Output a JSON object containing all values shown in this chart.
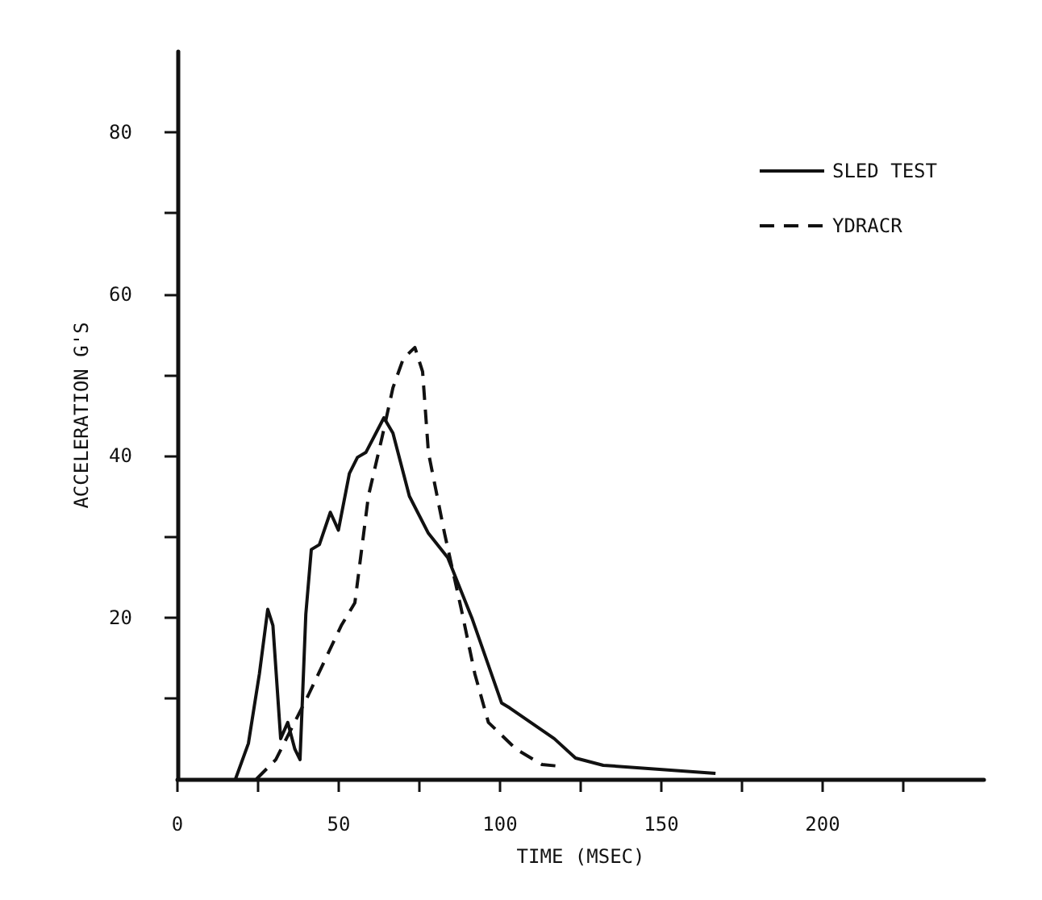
{
  "chart_data": {
    "type": "line",
    "xlabel": "TIME (MSEC)",
    "ylabel": "ACCELERATION G'S",
    "xlim": [
      0,
      250
    ],
    "ylim": [
      0,
      90
    ],
    "xticks": [
      0,
      {
        "value": 25,
        "label": null
      },
      50,
      {
        "value": 75,
        "label": null
      },
      100,
      {
        "value": 125,
        "label": null
      },
      150,
      {
        "value": 175,
        "label": null
      },
      200,
      {
        "value": 225,
        "label": null
      }
    ],
    "yticks": [
      {
        "value": 10,
        "label": null
      },
      20,
      {
        "value": 30,
        "label": null
      },
      40,
      {
        "value": 50,
        "label": null
      },
      60,
      {
        "value": 70,
        "label": null
      },
      80
    ],
    "grid": false,
    "legend": "top right",
    "marker": "none",
    "series": [
      {
        "name": "SLED TEST",
        "color": "#111111",
        "line_style": "solid",
        "x": [
          18,
          22,
          25.4,
          28,
          29.6,
          32,
          34.2,
          36.4,
          38,
          39.8,
          41.5,
          44,
          47.4,
          49.9,
          53.3,
          55.8,
          58.4,
          61.8,
          64,
          66.8,
          71.9,
          77.8,
          83.8,
          91.4,
          100.5,
          103,
          116.8,
          123.4,
          132,
          166.8
        ],
        "values": [
          0,
          4.4,
          13,
          21,
          19,
          5,
          7,
          3.7,
          2.4,
          20.4,
          28.4,
          29,
          33,
          30.8,
          37.8,
          39.8,
          40.4,
          43,
          44.7,
          42.8,
          35,
          30.4,
          27.4,
          19.8,
          9.4,
          8.8,
          5,
          2.6,
          1.7,
          0.7
        ]
      },
      {
        "name": "YDRACR",
        "color": "#111111",
        "line_style": "dashed",
        "x": [
          24.5,
          30.5,
          40.6,
          50.8,
          55,
          59.2,
          63.5,
          66.8,
          70,
          73.6,
          76,
          77.8,
          82.8,
          88,
          92.2,
          96.4,
          105,
          113,
          118
        ],
        "values": [
          0,
          2.4,
          10.4,
          19,
          21.8,
          35,
          42.4,
          48.4,
          52,
          53.4,
          50.4,
          40.4,
          30.4,
          21,
          13,
          7,
          3.7,
          1.8,
          1.6
        ]
      }
    ]
  }
}
